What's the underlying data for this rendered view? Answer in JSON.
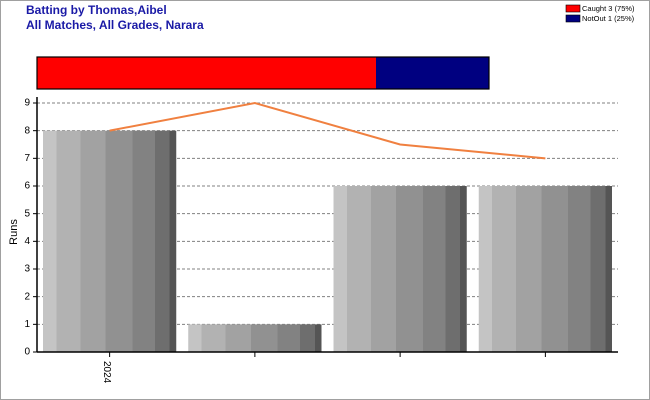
{
  "header": {
    "title": "Batting by Thomas,Aibel",
    "subtitle": "All Matches, All Grades, Narara"
  },
  "chart_data": [
    {
      "type": "stacked_bar",
      "series": [
        {
          "name": "Caught 3 (75%)",
          "color": "#ff0000",
          "values": [
            3
          ]
        },
        {
          "name": "NotOut 1 (25%)",
          "color": "#000080",
          "values": [
            1
          ]
        }
      ]
    },
    {
      "type": "bar",
      "ylabel": "Runs",
      "categories": [
        "2024",
        null,
        null,
        null
      ],
      "values": [
        8,
        1,
        6,
        6
      ],
      "line_values": [
        8,
        9,
        7.5,
        7
      ],
      "line_color": "#f08040",
      "ylim": [
        0,
        9
      ],
      "yticks": [
        0,
        1,
        2,
        3,
        4,
        5,
        6,
        7,
        8,
        9
      ],
      "grid": true
    }
  ]
}
